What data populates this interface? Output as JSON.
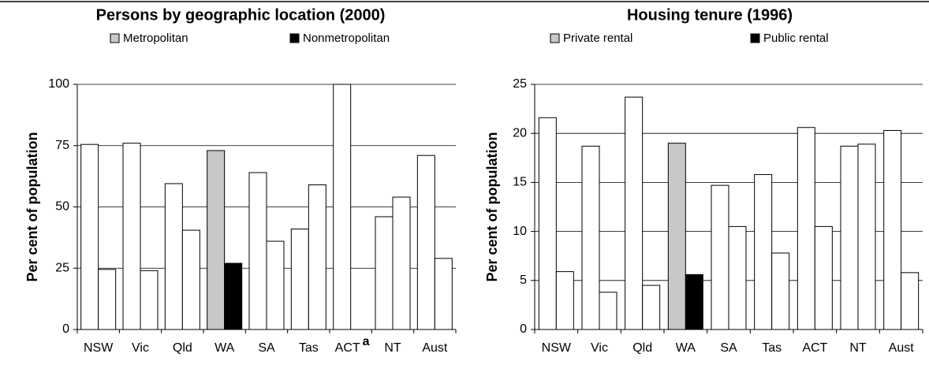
{
  "chart_data": [
    {
      "type": "bar",
      "title": "Persons by geographic location (2000)",
      "y_label": "Per cent of population",
      "categories": [
        "NSW",
        "Vic",
        "Qld",
        "WA",
        "SA",
        "Tas",
        "ACT",
        "NT",
        "Aust"
      ],
      "category_superscripts": {
        "ACT": "a"
      },
      "base_color": "#ffffff",
      "highlight_category": "WA",
      "series": [
        {
          "name": "Metropolitan",
          "color": "#c8c8c8",
          "values": [
            75.5,
            76,
            59.5,
            73,
            64,
            41,
            100,
            46,
            71
          ]
        },
        {
          "name": "Nonmetropolitan",
          "color": "#000000",
          "values": [
            24.5,
            24,
            40.5,
            27,
            36,
            59,
            0,
            54,
            29
          ]
        }
      ],
      "ylim": [
        0,
        100
      ],
      "yticks": [
        0,
        25,
        50,
        75,
        100
      ],
      "grid": true
    },
    {
      "type": "bar",
      "title": "Housing tenure (1996)",
      "y_label": "Per cent of population",
      "categories": [
        "NSW",
        "Vic",
        "Qld",
        "WA",
        "SA",
        "Tas",
        "ACT",
        "NT",
        "Aust"
      ],
      "base_color": "#ffffff",
      "highlight_category": "WA",
      "series": [
        {
          "name": "Private rental",
          "color": "#c8c8c8",
          "values": [
            21.6,
            18.7,
            23.7,
            19,
            14.7,
            15.8,
            20.6,
            18.7,
            20.3
          ]
        },
        {
          "name": "Public rental",
          "color": "#000000",
          "values": [
            5.9,
            3.8,
            4.5,
            5.6,
            10.5,
            7.8,
            10.5,
            18.9,
            5.8
          ]
        }
      ],
      "ylim": [
        0,
        25
      ],
      "yticks": [
        0,
        5,
        10,
        15,
        20,
        25
      ],
      "grid": true
    }
  ]
}
